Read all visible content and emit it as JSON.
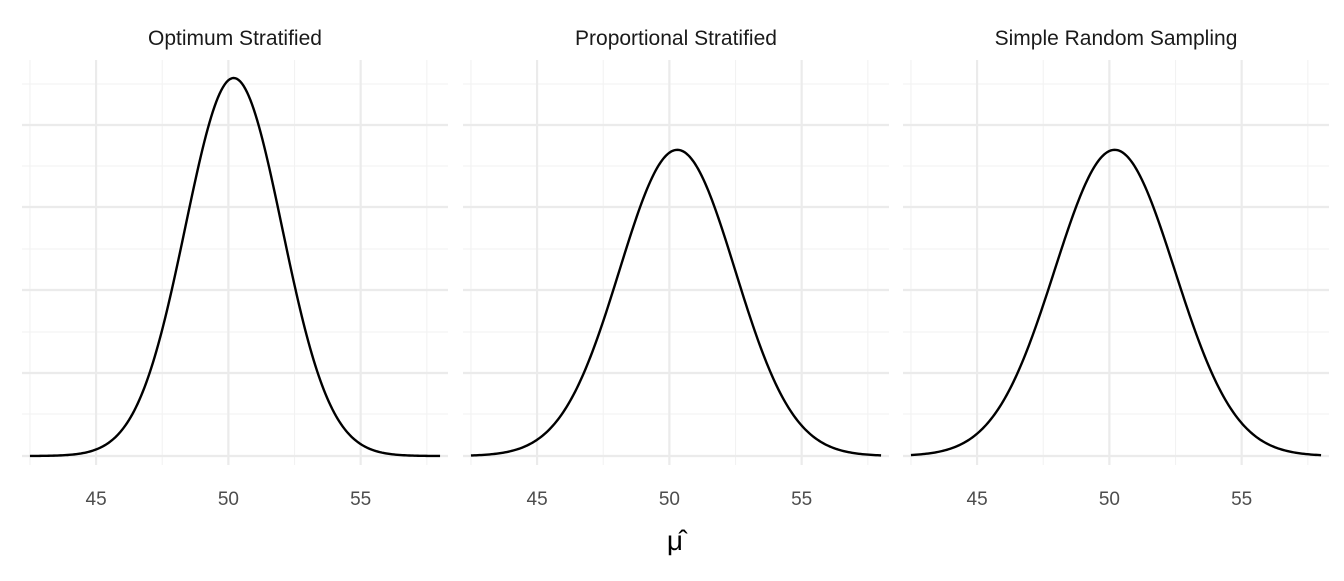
{
  "chart_data": {
    "type": "line",
    "xlabel": "μ̂",
    "ylabel": "",
    "xlim": [
      42.2,
      58.3
    ],
    "ylim": [
      0,
      1
    ],
    "x_ticks": [
      45,
      50,
      55
    ],
    "grid": true,
    "panels": [
      {
        "title": "Optimum Stratified",
        "series": [
          {
            "x": [
              42.5,
              44.0,
              45.0,
              46.0,
              47.0,
              48.0,
              49.0,
              50.2,
              51.5,
              52.5,
              53.5,
              54.5,
              55.5,
              56.5,
              58.0
            ],
            "y": [
              0.0,
              0.005,
              0.02,
              0.07,
              0.2,
              0.45,
              0.78,
              1.0,
              0.78,
              0.45,
              0.2,
              0.07,
              0.02,
              0.005,
              0.0
            ]
          }
        ]
      },
      {
        "title": "Proportional Stratified",
        "series": [
          {
            "x": [
              42.5,
              44.0,
              45.0,
              46.0,
              47.0,
              48.0,
              49.0,
              50.3,
              51.5,
              52.5,
              53.5,
              54.5,
              55.5,
              56.5,
              58.0
            ],
            "y": [
              0.0,
              0.02,
              0.06,
              0.14,
              0.28,
              0.48,
              0.69,
              0.81,
              0.69,
              0.48,
              0.28,
              0.14,
              0.06,
              0.02,
              0.0
            ]
          }
        ]
      },
      {
        "title": "Simple Random Sampling",
        "series": [
          {
            "x": [
              42.5,
              44.0,
              45.0,
              46.0,
              47.0,
              48.0,
              49.0,
              50.2,
              51.5,
              52.5,
              53.5,
              54.5,
              55.5,
              56.5,
              58.0
            ],
            "y": [
              0.0,
              0.02,
              0.06,
              0.14,
              0.28,
              0.48,
              0.69,
              0.81,
              0.69,
              0.48,
              0.28,
              0.14,
              0.06,
              0.02,
              0.0
            ]
          }
        ]
      }
    ]
  }
}
